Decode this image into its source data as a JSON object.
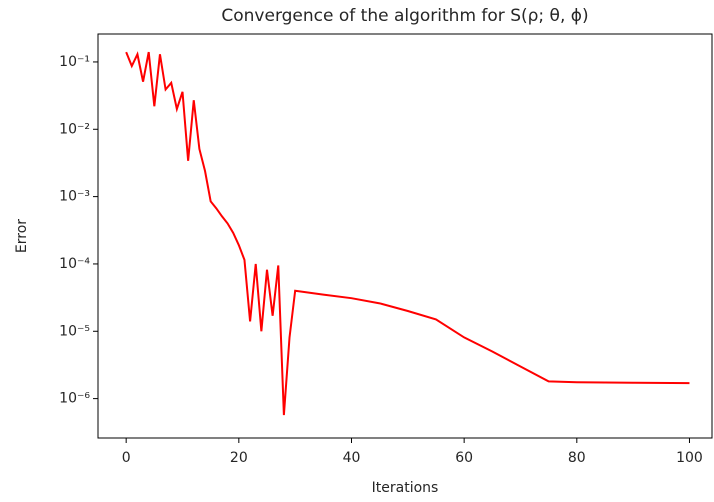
{
  "chart_data": {
    "type": "line",
    "title": "Convergence of the algorithm for S(ρ; θ, ϕ)",
    "x_label": "Iterations",
    "y_label": "Error",
    "x": [
      0,
      1,
      2,
      3,
      4,
      5,
      6,
      7,
      8,
      9,
      10,
      11,
      12,
      13,
      14,
      15,
      16,
      17,
      18,
      19,
      20,
      21,
      22,
      23,
      24,
      25,
      26,
      27,
      28,
      29,
      30,
      35,
      40,
      45,
      50,
      55,
      60,
      65,
      70,
      75,
      80,
      90,
      100
    ],
    "values": [
      0.14,
      0.087,
      0.13,
      0.051,
      0.14,
      0.022,
      0.13,
      0.039,
      0.049,
      0.02,
      0.036,
      0.0034,
      0.027,
      0.0051,
      0.0024,
      0.00085,
      0.00067,
      0.00051,
      0.0004,
      0.00029,
      0.00019,
      0.000115,
      1.4e-05,
      0.0001,
      1e-05,
      8.2e-05,
      1.7e-05,
      9.5e-05,
      5.7e-07,
      8.1e-06,
      4e-05,
      3.5e-05,
      3.1e-05,
      2.6e-05,
      2e-05,
      1.5e-05,
      8.1e-06,
      5e-06,
      3e-06,
      1.8e-06,
      1.75e-06,
      1.72e-06,
      1.7e-06
    ],
    "color": "#ff0000",
    "xlim": [
      -5,
      104
    ],
    "xticks": [
      0,
      20,
      40,
      60,
      80,
      100
    ],
    "ylim": [
      2.6e-07,
      0.26
    ],
    "log_y": true,
    "yticks": [
      {
        "value": 0.1,
        "label": "10⁻¹"
      },
      {
        "value": 0.01,
        "label": "10⁻²"
      },
      {
        "value": 0.001,
        "label": "10⁻³"
      },
      {
        "value": 0.0001,
        "label": "10⁻⁴"
      },
      {
        "value": 1e-05,
        "label": "10⁻⁵"
      },
      {
        "value": 1e-06,
        "label": "10⁻⁶"
      }
    ],
    "grid": false
  }
}
